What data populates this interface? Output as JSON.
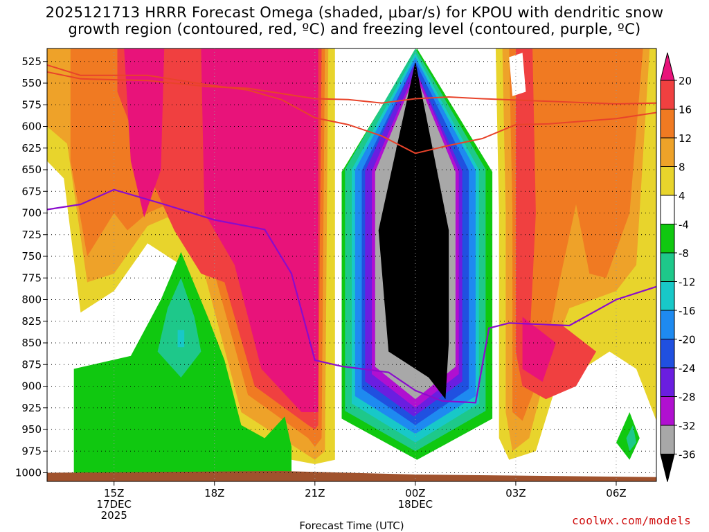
{
  "title_lines": [
    "2025121713 HRRR Forecast Omega (shaded, μbar/s) for KPOU with dendritic snow",
    "growth region (contoured, red, ºC) and freezing level (contoured, purple, ºC)"
  ],
  "credit": "coolwx.com/models",
  "chart_data": {
    "type": "time-height cross section (filled contour)",
    "x_axis_label": "Forecast Time (UTC)",
    "x_range_hours_utc": [
      13.0,
      31.2
    ],
    "x_ticks": [
      {
        "hour": 15,
        "lines": [
          "15Z",
          "17DEC",
          "2025"
        ]
      },
      {
        "hour": 18,
        "lines": [
          "18Z"
        ]
      },
      {
        "hour": 21,
        "lines": [
          "21Z"
        ]
      },
      {
        "hour": 24,
        "lines": [
          "00Z",
          "18DEC"
        ]
      },
      {
        "hour": 27,
        "lines": [
          "03Z"
        ]
      },
      {
        "hour": 30,
        "lines": [
          "06Z"
        ]
      }
    ],
    "y_axis_units": "hPa",
    "y_range_hpa": [
      1010,
      510
    ],
    "y_ticks": [
      525,
      550,
      575,
      600,
      625,
      650,
      675,
      700,
      725,
      750,
      775,
      800,
      825,
      850,
      875,
      900,
      925,
      950,
      975,
      1000
    ],
    "colorbar": {
      "labels": [
        20,
        16,
        12,
        8,
        4,
        -4,
        -8,
        -12,
        -16,
        -20,
        -24,
        -28,
        -32,
        -36
      ],
      "bins": [
        {
          "range": "> 20",
          "color": "#e8137a"
        },
        {
          "range": "16 to 20",
          "color": "#f04040"
        },
        {
          "range": "12 to 16",
          "color": "#f07a22"
        },
        {
          "range": "8 to 12",
          "color": "#eea229"
        },
        {
          "range": "4 to 8",
          "color": "#e8d42c"
        },
        {
          "range": "-4 to 4",
          "color": "#ffffff"
        },
        {
          "range": "-8 to -4",
          "color": "#10c810"
        },
        {
          "range": "-12 to -8",
          "color": "#1ec88a"
        },
        {
          "range": "-16 to -12",
          "color": "#18c8c8"
        },
        {
          "range": "-20 to -16",
          "color": "#1e8af0"
        },
        {
          "range": "-24 to -20",
          "color": "#2050e0"
        },
        {
          "range": "-28 to -24",
          "color": "#6a1ee0"
        },
        {
          "range": "-32 to -28",
          "color": "#b010d0"
        },
        {
          "range": "-36 to -32",
          "color": "#a8a8a8"
        },
        {
          "range": "< -36",
          "color": "#000000"
        }
      ]
    },
    "dgz_lines_red": [
      {
        "name": "DGZ -12C",
        "points": [
          [
            13.0,
            537
          ],
          [
            14.0,
            545
          ],
          [
            16.0,
            547
          ],
          [
            17.8,
            554
          ],
          [
            19.0,
            556
          ],
          [
            21.0,
            568
          ],
          [
            22.0,
            569
          ],
          [
            23.0,
            573
          ],
          [
            24.0,
            568
          ],
          [
            25.0,
            566
          ],
          [
            26.0,
            568
          ],
          [
            28.0,
            571
          ],
          [
            30.0,
            574
          ],
          [
            31.2,
            573
          ]
        ]
      },
      {
        "name": "DGZ -18C",
        "points": [
          [
            13.0,
            529
          ],
          [
            14.0,
            541
          ],
          [
            16.0,
            541
          ],
          [
            17.8,
            552
          ],
          [
            19.0,
            558
          ],
          [
            20.0,
            569
          ],
          [
            21.0,
            590
          ],
          [
            22.0,
            598
          ],
          [
            23.0,
            611
          ],
          [
            24.0,
            631
          ],
          [
            25.0,
            622
          ],
          [
            26.0,
            614
          ],
          [
            27.0,
            598
          ],
          [
            28.0,
            597
          ],
          [
            30.0,
            591
          ],
          [
            31.2,
            584
          ]
        ]
      }
    ],
    "freezing_level_purple": {
      "name": "0C",
      "points": [
        [
          13.0,
          696
        ],
        [
          14.0,
          690
        ],
        [
          15.0,
          673
        ],
        [
          16.5,
          690
        ],
        [
          18.0,
          708
        ],
        [
          19.5,
          719
        ],
        [
          20.3,
          770
        ],
        [
          21.0,
          870
        ],
        [
          21.8,
          877
        ],
        [
          23.2,
          884
        ],
        [
          24.0,
          905
        ],
        [
          24.8,
          917
        ],
        [
          25.8,
          919
        ],
        [
          26.2,
          833
        ],
        [
          26.8,
          827
        ],
        [
          28.6,
          830
        ],
        [
          30.0,
          800
        ],
        [
          31.2,
          785
        ]
      ]
    },
    "omega_features": [
      {
        "label": "strong ascent core (< -36)",
        "time_range": "22.5Z-25.0Z",
        "pressure_range": "525-915 hPa"
      },
      {
        "label": "strong subsidence (> 20)",
        "time_range": "15.3Z-16.7Z, 17.5Z-21.3Z",
        "pressure_range": "520-930 hPa"
      },
      {
        "label": "weak ascent (-4 to -12)",
        "time_range": "13.8Z-20.3Z",
        "pressure_range": "740-1000 hPa"
      }
    ]
  }
}
